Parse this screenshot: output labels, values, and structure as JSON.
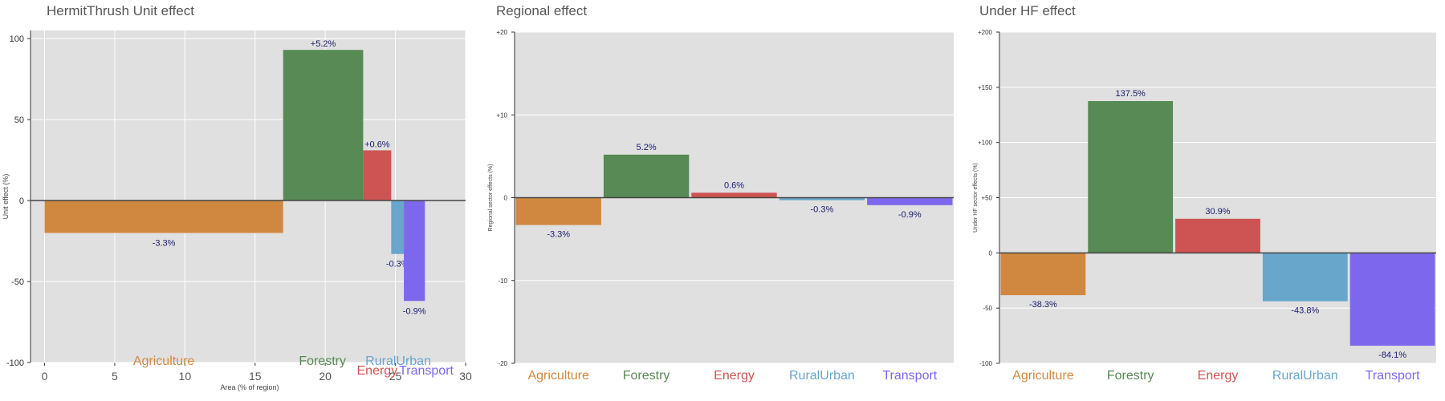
{
  "colors": {
    "Agriculture": "#d08840",
    "Forestry": "#578a54",
    "Energy": "#cd5452",
    "RuralUrban": "#68a6cc",
    "Transport": "#7d68ed",
    "panel_bg": "#e0e0e0",
    "label_text": "#1a1a6e"
  },
  "chart_data": [
    {
      "type": "bar",
      "title": "HermitThrush Unit effect",
      "xlabel": "Area (% of region)",
      "ylabel": "Unit effect (%)",
      "xlim": [
        -1,
        30
      ],
      "ylim": [
        -100,
        105
      ],
      "xticks": [
        0,
        5,
        10,
        15,
        20,
        25,
        30
      ],
      "yticks": [
        -100,
        -50,
        0,
        50,
        100
      ],
      "ytick_labels": [
        "-100",
        "-50",
        "0",
        "50",
        "100"
      ],
      "grid": true,
      "bars": [
        {
          "category": "Agriculture",
          "x_start": 0,
          "x_end": 17,
          "value": -20,
          "label": "-3.3%"
        },
        {
          "category": "Forestry",
          "x_start": 17,
          "x_end": 22.7,
          "value": 93,
          "label": "+5.2%"
        },
        {
          "category": "Energy",
          "x_start": 22.7,
          "x_end": 24.7,
          "value": 31,
          "label": "+0.6%"
        },
        {
          "category": "RuralUrban",
          "x_start": 24.7,
          "x_end": 25.6,
          "value": -33,
          "label": "-0.3%"
        },
        {
          "category": "Transport",
          "x_start": 25.6,
          "x_end": 27.1,
          "value": -62,
          "label": "-0.9%"
        }
      ],
      "category_labels": [
        {
          "text": "Agriculture",
          "x": 8.5,
          "y": -99
        },
        {
          "text": "Forestry",
          "x": 19.8,
          "y": -99
        },
        {
          "text": "Energy",
          "x": 23.7,
          "y": -105
        },
        {
          "text": "RuralUrban",
          "x": 25.2,
          "y": -99
        },
        {
          "text": "Transport",
          "x": 27.2,
          "y": -105
        }
      ]
    },
    {
      "type": "bar",
      "title": "Regional effect",
      "xlabel": "",
      "ylabel": "Regional sector effects (%)",
      "categories": [
        "Agriculture",
        "Forestry",
        "Energy",
        "RuralUrban",
        "Transport"
      ],
      "values": [
        -3.3,
        5.2,
        0.6,
        -0.3,
        -0.9
      ],
      "labels": [
        "-3.3%",
        "5.2%",
        "0.6%",
        "-0.3%",
        "-0.9%"
      ],
      "ylim": [
        -20,
        20
      ],
      "yticks": [
        -20,
        -10,
        0,
        10,
        20
      ],
      "ytick_labels": [
        "-20",
        "-10",
        "0",
        "+10",
        "+20"
      ],
      "grid": true
    },
    {
      "type": "bar",
      "title": "Under HF effect",
      "xlabel": "",
      "ylabel": "Under HF sector effects (%)",
      "categories": [
        "Agriculture",
        "Forestry",
        "Energy",
        "RuralUrban",
        "Transport"
      ],
      "values": [
        -38.3,
        137.5,
        30.9,
        -43.8,
        -84.1
      ],
      "labels": [
        "-38.3%",
        "137.5%",
        "30.9%",
        "-43.8%",
        "-84.1%"
      ],
      "ylim": [
        -100,
        200
      ],
      "yticks": [
        -100,
        -50,
        0,
        50,
        100,
        150,
        200
      ],
      "ytick_labels": [
        "-100",
        "-50",
        "0",
        "+50",
        "+100",
        "+150",
        "+200"
      ],
      "grid": true
    }
  ]
}
